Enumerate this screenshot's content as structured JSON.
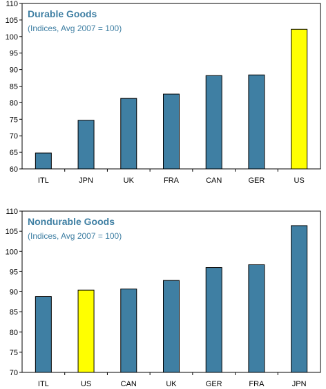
{
  "colors": {
    "bar": "#3f7fa3",
    "highlight": "#ffff00",
    "bar_stroke": "#000000",
    "title": "#3f7fa3",
    "frame": "#000000"
  },
  "chart_data": [
    {
      "type": "bar",
      "title": "Durable Goods",
      "subtitle": "(Indices, Avg 2007 = 100)",
      "categories": [
        "ITL",
        "JPN",
        "UK",
        "FRA",
        "CAN",
        "GER",
        "US"
      ],
      "values": [
        64.8,
        74.7,
        81.3,
        82.6,
        88.2,
        88.4,
        102.2
      ],
      "highlight": [
        "US"
      ],
      "ylim": [
        60,
        110
      ],
      "yticks": [
        60,
        65,
        70,
        75,
        80,
        85,
        90,
        95,
        100,
        105,
        110
      ],
      "grid": false
    },
    {
      "type": "bar",
      "title": "Nondurable Goods",
      "subtitle": "(Indices, Avg 2007 = 100)",
      "categories": [
        "ITL",
        "US",
        "CAN",
        "UK",
        "GER",
        "FRA",
        "JPN"
      ],
      "values": [
        88.8,
        90.4,
        90.7,
        92.8,
        96.0,
        96.7,
        106.4
      ],
      "highlight": [
        "US"
      ],
      "ylim": [
        70,
        110
      ],
      "yticks": [
        70,
        75,
        80,
        85,
        90,
        95,
        100,
        105,
        110
      ],
      "grid": false
    }
  ]
}
